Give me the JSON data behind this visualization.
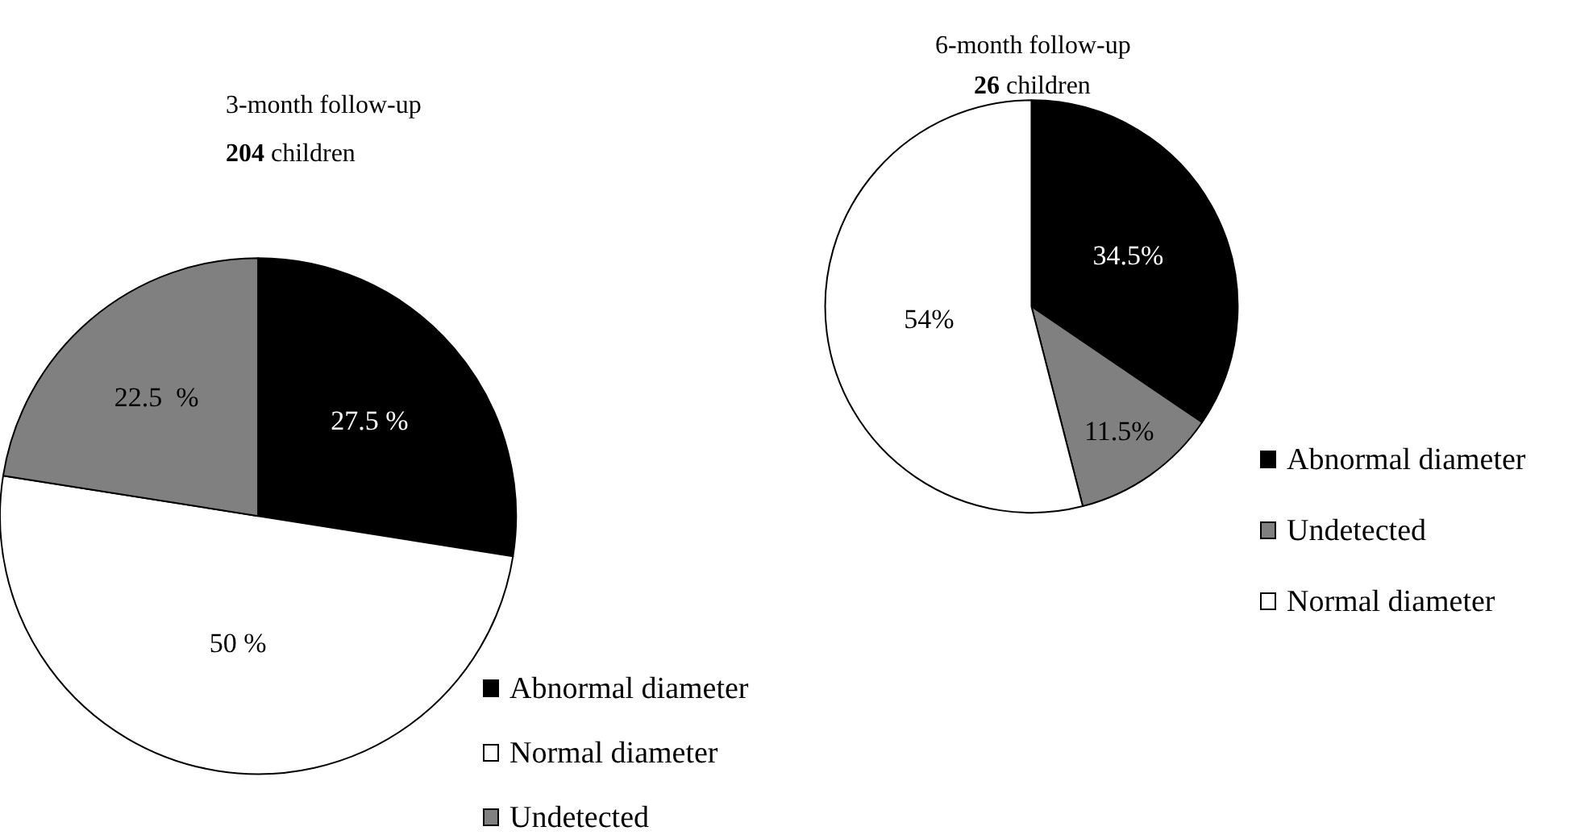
{
  "chart_data": [
    {
      "type": "pie",
      "title": "3-month follow-up",
      "subtitle": "204 children",
      "categories": [
        "Abnormal diameter",
        "Normal diameter",
        "Undetected"
      ],
      "values": [
        27.5,
        50,
        22.5
      ],
      "colors": [
        "#000000",
        "#ffffff",
        "#808080"
      ],
      "value_labels": [
        "27.5 %",
        "50 %",
        "22.5  %"
      ],
      "legend": "bottom right"
    },
    {
      "type": "pie",
      "title": "6-month follow-up",
      "subtitle": "26 children",
      "categories": [
        "Abnormal diameter",
        "Undetected",
        "Normal diameter"
      ],
      "values": [
        34.5,
        11.5,
        54
      ],
      "colors": [
        "#000000",
        "#808080",
        "#ffffff"
      ],
      "value_labels": [
        "34.5%",
        "11.5%",
        "54%"
      ],
      "legend": "right"
    }
  ]
}
